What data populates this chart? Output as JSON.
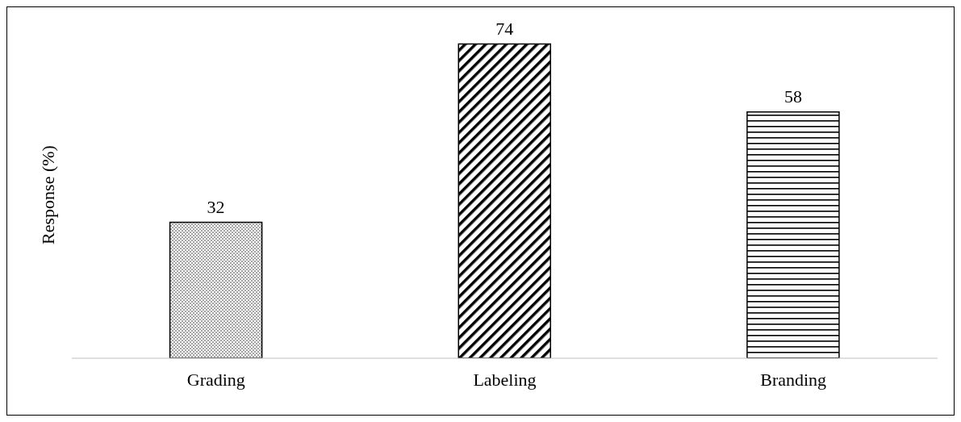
{
  "chart_data": {
    "type": "bar",
    "ylabel": "Response (%)",
    "categories": [
      "Grading",
      "Labeling",
      "Branding"
    ],
    "values": [
      32,
      74,
      58
    ],
    "colors": [
      "#000000",
      "#000000",
      "#000000"
    ],
    "data_labels": true,
    "relative": false
  }
}
